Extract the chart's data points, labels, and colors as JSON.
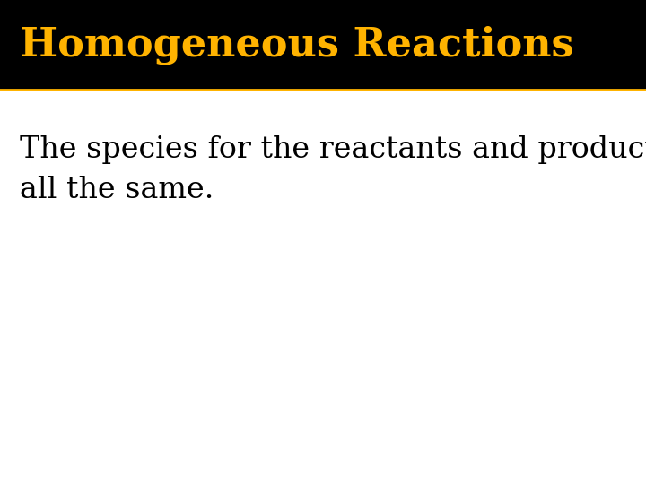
{
  "title": "Homogeneous Reactions",
  "title_color": "#FFB300",
  "title_bg_color": "#000000",
  "body_bg_color": "#FFFFFF",
  "body_text": "The species for the reactants and products are\nall the same.",
  "body_text_color": "#000000",
  "title_fontsize": 32,
  "body_fontsize": 24,
  "title_bar_height": 0.185,
  "separator_color": "#FFB300",
  "separator_linewidth": 2
}
